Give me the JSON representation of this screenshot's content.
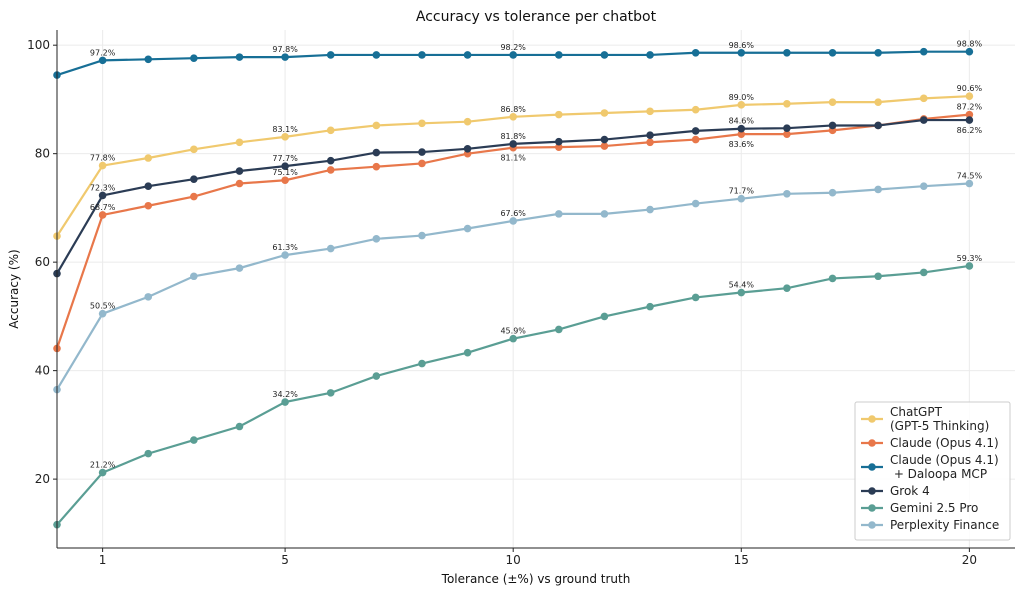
{
  "chart_data": {
    "type": "line",
    "title": "Accuracy vs tolerance per chatbot",
    "xlabel": "Tolerance (±%) vs ground truth",
    "ylabel": "Accuracy (%)",
    "xlim": [
      0,
      21
    ],
    "ylim": [
      7.3,
      102.8
    ],
    "xticks": [
      1,
      5,
      10,
      15,
      20
    ],
    "yticks": [
      20,
      40,
      60,
      80,
      100
    ],
    "grid": true,
    "legend_position": "lower-right",
    "labeled_x": [
      1,
      5,
      10,
      15,
      20
    ],
    "x": [
      0,
      1,
      2,
      3,
      4,
      5,
      6,
      7,
      8,
      9,
      10,
      11,
      12,
      13,
      14,
      15,
      16,
      17,
      18,
      19,
      20
    ],
    "series": [
      {
        "name": "ChatGPT\n(GPT-5 Thinking)",
        "color": "#f0c96e",
        "values": [
          64.8,
          77.8,
          79.2,
          80.8,
          82.1,
          83.1,
          84.3,
          85.2,
          85.6,
          85.9,
          86.8,
          87.2,
          87.5,
          87.8,
          88.1,
          89.0,
          89.2,
          89.5,
          89.5,
          90.2,
          90.6
        ]
      },
      {
        "name": "Claude (Opus 4.1)",
        "color": "#e8774a",
        "values": [
          44.1,
          68.7,
          70.4,
          72.1,
          74.5,
          75.1,
          77.0,
          77.6,
          78.2,
          80.0,
          81.1,
          81.2,
          81.4,
          82.1,
          82.6,
          83.6,
          83.6,
          84.3,
          85.2,
          86.4,
          87.2
        ]
      },
      {
        "name": "Claude (Opus 4.1)\n + Daloopa MCP",
        "color": "#176f96",
        "values": [
          94.5,
          97.2,
          97.4,
          97.6,
          97.8,
          97.8,
          98.2,
          98.2,
          98.2,
          98.2,
          98.2,
          98.2,
          98.2,
          98.2,
          98.6,
          98.6,
          98.6,
          98.6,
          98.6,
          98.8,
          98.8
        ]
      },
      {
        "name": "Grok 4",
        "color": "#2b3c55",
        "values": [
          57.9,
          72.3,
          74.0,
          75.3,
          76.8,
          77.7,
          78.7,
          80.2,
          80.3,
          80.9,
          81.8,
          82.2,
          82.6,
          83.4,
          84.2,
          84.6,
          84.7,
          85.2,
          85.2,
          86.2,
          86.2
        ]
      },
      {
        "name": "Gemini 2.5 Pro",
        "color": "#5a9e94",
        "values": [
          11.6,
          21.2,
          24.7,
          27.2,
          29.7,
          34.2,
          35.9,
          39.0,
          41.3,
          43.3,
          45.9,
          47.6,
          50.0,
          51.8,
          53.5,
          54.4,
          55.2,
          57.0,
          57.4,
          58.1,
          59.3
        ]
      },
      {
        "name": "Perplexity Finance",
        "color": "#93b8cc",
        "values": [
          36.5,
          50.5,
          53.6,
          57.4,
          58.9,
          61.3,
          62.5,
          64.3,
          64.9,
          66.2,
          67.6,
          68.9,
          68.9,
          69.7,
          70.8,
          71.7,
          72.6,
          72.8,
          73.4,
          74.0,
          74.5
        ]
      }
    ]
  }
}
